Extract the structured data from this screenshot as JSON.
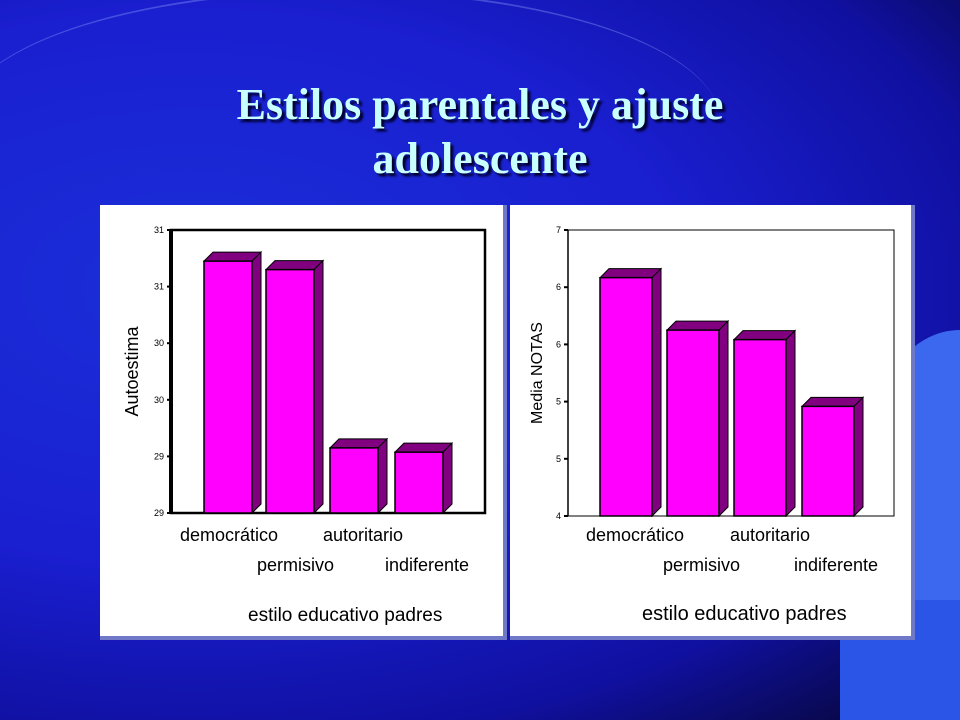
{
  "slide": {
    "title": "Estilos parentales y ajuste adolescente"
  },
  "chart_data": [
    {
      "type": "bar",
      "categories": [
        "democrático",
        "permisivo",
        "autoritario",
        "indiferente"
      ],
      "values": [
        30.78,
        30.72,
        29.46,
        29.43
      ],
      "ylabel": "Autoestima",
      "xlabel": "estilo educativo padres",
      "yticks": [
        "29",
        "29",
        "30",
        "30",
        "31",
        "31"
      ],
      "ylim": [
        29.0,
        31.0
      ],
      "bar_color": "#ff00ff",
      "bar_dark_color": "#800080"
    },
    {
      "type": "bar",
      "categories": [
        "democrático",
        "permisivo",
        "autoritario",
        "indiferente"
      ],
      "values": [
        6.5,
        5.95,
        5.85,
        5.15
      ],
      "ylabel": "Media NOTAS",
      "xlabel": "estilo educativo padres",
      "yticks": [
        "4",
        "5",
        "5",
        "6",
        "6",
        "7"
      ],
      "ylim": [
        4.0,
        7.0
      ],
      "bar_color": "#ff00ff",
      "bar_dark_color": "#800080"
    }
  ]
}
